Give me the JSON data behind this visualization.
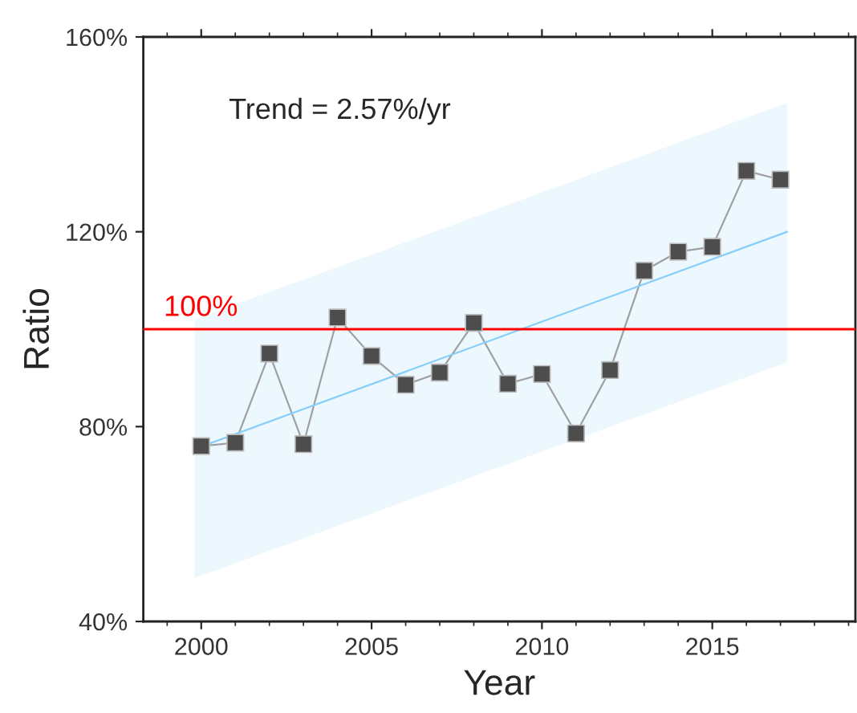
{
  "chart_data": {
    "type": "line",
    "xlabel": "Year",
    "ylabel": "Ratio",
    "xlim": [
      1998.3,
      2019.2
    ],
    "xticks": [
      2000,
      2005,
      2010,
      2015
    ],
    "ylim": [
      40,
      160
    ],
    "yticks": [
      {
        "value": 40,
        "label": "40%"
      },
      {
        "value": 80,
        "label": "80%"
      },
      {
        "value": 120,
        "label": "120%"
      },
      {
        "value": 160,
        "label": "160%"
      }
    ],
    "x": [
      2000,
      2001,
      2002,
      2003,
      2004,
      2005,
      2006,
      2007,
      2008,
      2009,
      2010,
      2011,
      2012,
      2013,
      2014,
      2015,
      2016,
      2017
    ],
    "series": [
      {
        "color": "#4d4d4d",
        "marker": "square",
        "values": [
          76.0,
          76.7,
          95.0,
          76.4,
          102.4,
          94.5,
          88.6,
          91.1,
          101.3,
          88.8,
          90.8,
          78.6,
          91.6,
          112.0,
          115.9,
          116.9,
          132.5,
          130.7
        ]
      },
      {
        "color": "#87cefa",
        "marker": "none",
        "x": [
          1999.8,
          2017.2
        ],
        "values": [
          75.4,
          120.0
        ],
        "lower": [
          48.9,
          93.2
        ],
        "upper": [
          102.0,
          146.5
        ]
      }
    ],
    "ref_lines": [
      {
        "axis": "y",
        "value": 100,
        "label": "100%",
        "color": "#ff0000"
      }
    ],
    "annotations": [
      "Trend = 2.57%/yr"
    ],
    "grid": false,
    "legend": false
  }
}
